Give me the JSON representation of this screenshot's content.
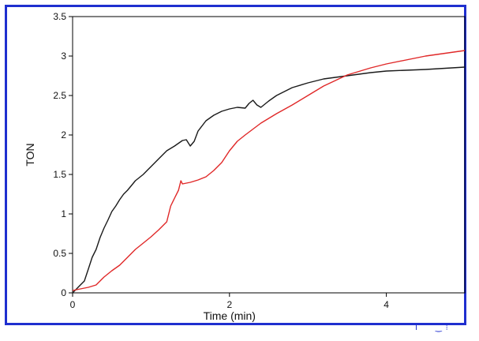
{
  "chart_data": {
    "type": "line",
    "xlabel": "Time (min)",
    "ylabel": "TON",
    "xlim": [
      0,
      5
    ],
    "ylim": [
      0,
      3.5
    ],
    "x_ticks": [
      0,
      2,
      4
    ],
    "x_tick_labels": [
      "0",
      "2",
      "4"
    ],
    "y_ticks": [
      0,
      0.5,
      1,
      1.5,
      2,
      2.5,
      3,
      3.5
    ],
    "y_tick_labels": [
      "0",
      "0.5",
      "1",
      "1.5",
      "2",
      "2.5",
      "3",
      "3.5"
    ],
    "grid": false,
    "legend": "none",
    "series": [
      {
        "color": "#1a1a1a",
        "x": [
          0,
          0.05,
          0.1,
          0.15,
          0.2,
          0.25,
          0.3,
          0.35,
          0.4,
          0.45,
          0.5,
          0.55,
          0.6,
          0.65,
          0.7,
          0.75,
          0.8,
          0.85,
          0.9,
          0.95,
          1.0,
          1.1,
          1.2,
          1.3,
          1.4,
          1.45,
          1.5,
          1.55,
          1.6,
          1.7,
          1.8,
          1.9,
          2.0,
          2.1,
          2.2,
          2.25,
          2.3,
          2.35,
          2.4,
          2.5,
          2.6,
          2.8,
          3.0,
          3.2,
          3.5,
          3.8,
          4.0,
          4.5,
          5.0
        ],
        "y": [
          0,
          0.05,
          0.1,
          0.15,
          0.3,
          0.45,
          0.55,
          0.7,
          0.82,
          0.92,
          1.03,
          1.1,
          1.18,
          1.25,
          1.3,
          1.36,
          1.42,
          1.46,
          1.5,
          1.55,
          1.6,
          1.7,
          1.8,
          1.86,
          1.93,
          1.94,
          1.86,
          1.92,
          2.05,
          2.18,
          2.25,
          2.3,
          2.33,
          2.35,
          2.34,
          2.4,
          2.44,
          2.38,
          2.35,
          2.43,
          2.5,
          2.6,
          2.66,
          2.71,
          2.75,
          2.79,
          2.81,
          2.83,
          2.86
        ]
      },
      {
        "color": "#e02828",
        "x": [
          0,
          0.1,
          0.2,
          0.3,
          0.35,
          0.4,
          0.5,
          0.6,
          0.7,
          0.8,
          0.9,
          1.0,
          1.1,
          1.2,
          1.25,
          1.3,
          1.35,
          1.38,
          1.4,
          1.5,
          1.6,
          1.7,
          1.8,
          1.9,
          2.0,
          2.1,
          2.2,
          2.4,
          2.6,
          2.8,
          3.0,
          3.2,
          3.5,
          3.8,
          4.0,
          4.5,
          5.0
        ],
        "y": [
          0.03,
          0.05,
          0.07,
          0.1,
          0.15,
          0.2,
          0.28,
          0.35,
          0.45,
          0.55,
          0.63,
          0.71,
          0.8,
          0.9,
          1.1,
          1.2,
          1.3,
          1.42,
          1.38,
          1.4,
          1.43,
          1.47,
          1.55,
          1.65,
          1.8,
          1.92,
          2.0,
          2.15,
          2.27,
          2.38,
          2.5,
          2.62,
          2.76,
          2.85,
          2.9,
          3.0,
          3.07
        ]
      }
    ]
  },
  "corner_text": "Ⅰ ⁀⁀‿ ⁝"
}
